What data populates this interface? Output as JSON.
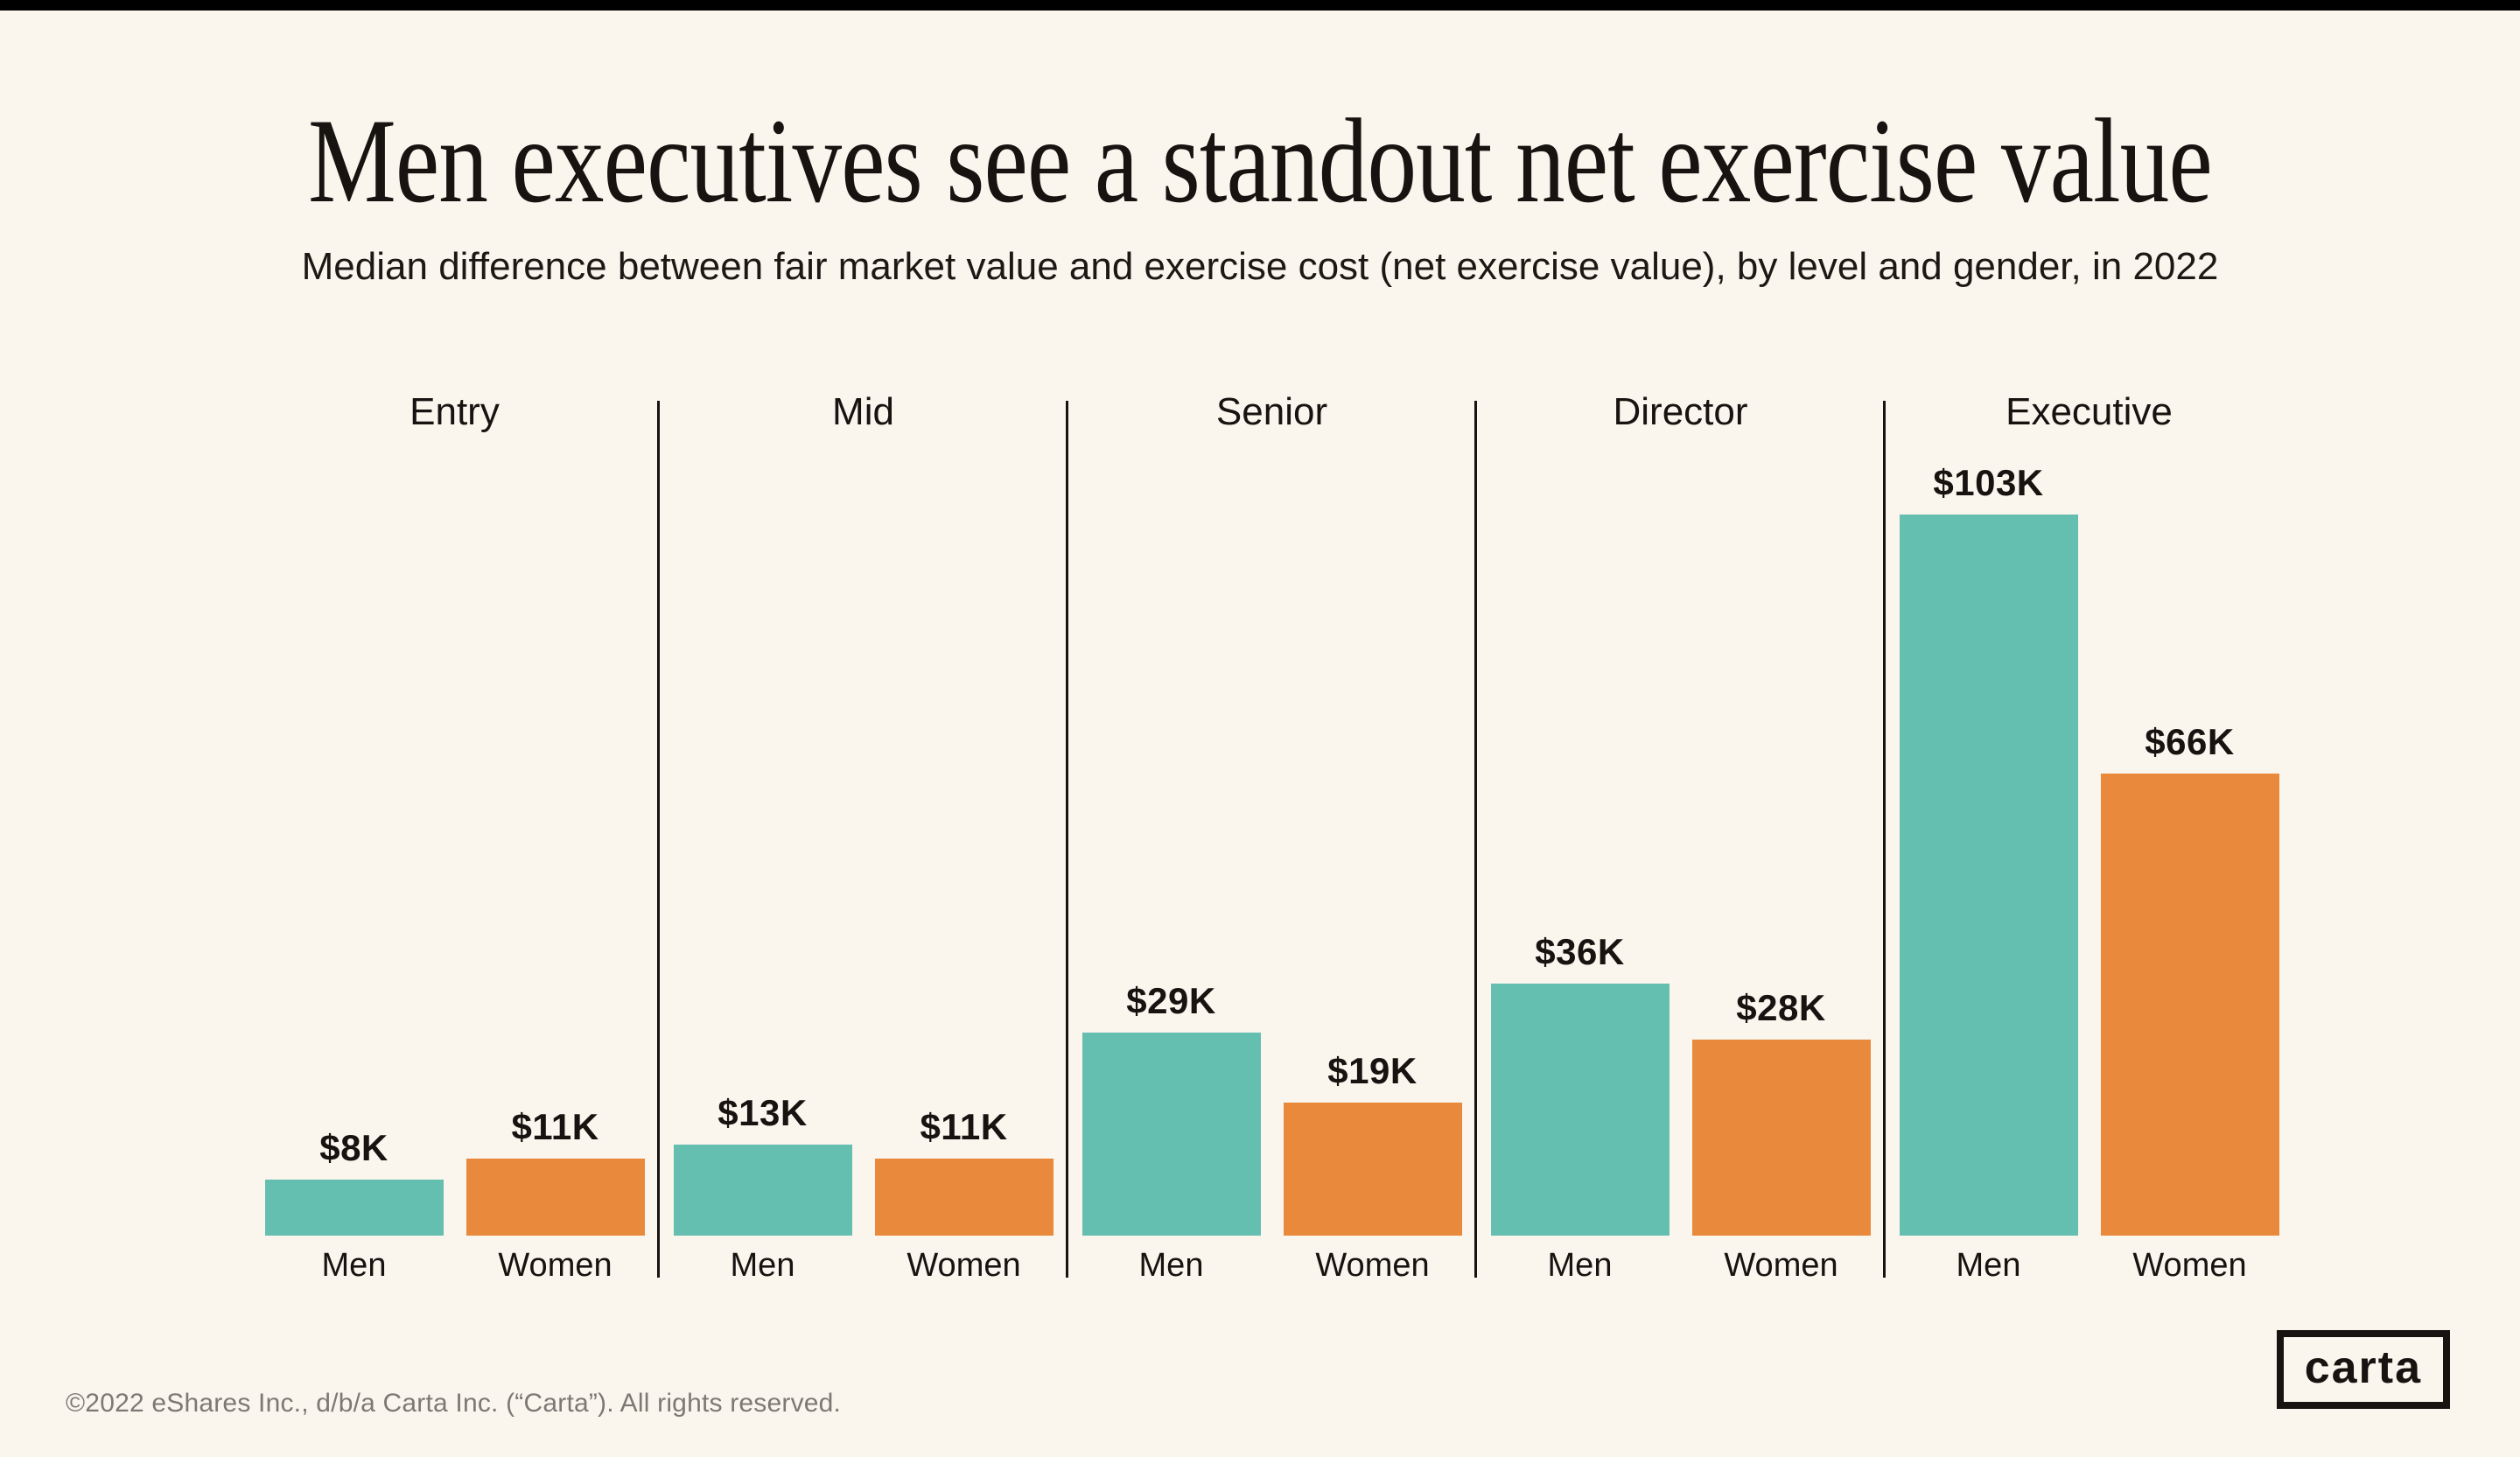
{
  "page": {
    "title": "Men executives see a standout net exercise value",
    "subtitle": "Median difference between fair market value and exercise cost (net exercise value), by level and gender, in 2022",
    "footer": "©2022 eShares Inc., d/b/a Carta Inc. (“Carta”). All rights reserved.",
    "logo_text": "carta"
  },
  "colors": {
    "background": "#FAF5ED",
    "top_bar": "#000000",
    "text": "#161310",
    "men_bar": "#65BFB0",
    "women_bar": "#E8893B",
    "separator": "#161310",
    "footer_text": "#7C7974"
  },
  "chart_data": {
    "type": "bar",
    "title": "Men executives see a standout net exercise value",
    "subtitle": "Median difference between fair market value and exercise cost (net exercise value), by level and gender, in 2022",
    "categories": [
      "Entry",
      "Mid",
      "Senior",
      "Director",
      "Executive"
    ],
    "series": [
      {
        "name": "Men",
        "color": "#65BFB0",
        "values_usd_thousands": [
          8,
          13,
          29,
          36,
          103
        ],
        "labels": [
          "$8K",
          "$13K",
          "$29K",
          "$36K",
          "$103K"
        ]
      },
      {
        "name": "Women",
        "color": "#E8893B",
        "values_usd_thousands": [
          11,
          11,
          19,
          28,
          66
        ],
        "labels": [
          "$11K",
          "$11K",
          "$19K",
          "$28K",
          "$66K"
        ]
      }
    ],
    "ylim_usd_thousands": [
      0,
      114
    ],
    "gridlines": false,
    "value_axis": "hidden; values shown as data labels above each bar",
    "legend": "none; series names shown under each bar",
    "group_separators": true
  }
}
